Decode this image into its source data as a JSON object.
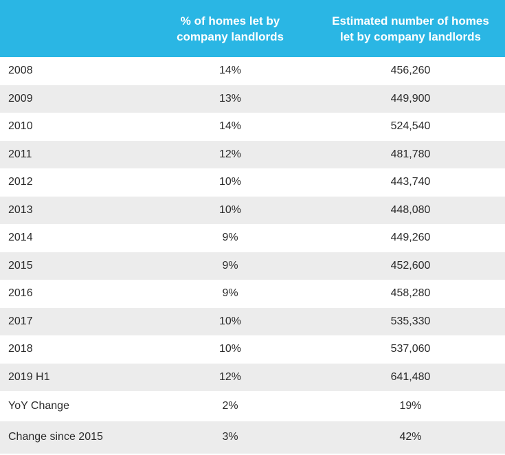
{
  "table": {
    "headers": {
      "year": "",
      "percent": "% of homes let by\ncompany landlords",
      "estimated": "Estimated number of homes\nlet by company landlords"
    },
    "rows": [
      {
        "label": "2008",
        "percent": "14%",
        "estimated": "456,260"
      },
      {
        "label": "2009",
        "percent": "13%",
        "estimated": "449,900"
      },
      {
        "label": "2010",
        "percent": "14%",
        "estimated": "524,540"
      },
      {
        "label": "2011",
        "percent": "12%",
        "estimated": "481,780"
      },
      {
        "label": "2012",
        "percent": "10%",
        "estimated": "443,740"
      },
      {
        "label": "2013",
        "percent": "10%",
        "estimated": "448,080"
      },
      {
        "label": "2014",
        "percent": "9%",
        "estimated": "449,260"
      },
      {
        "label": "2015",
        "percent": "9%",
        "estimated": "452,600"
      },
      {
        "label": "2016",
        "percent": "9%",
        "estimated": "458,280"
      },
      {
        "label": "2017",
        "percent": "10%",
        "estimated": "535,330"
      },
      {
        "label": "2018",
        "percent": "10%",
        "estimated": "537,060"
      },
      {
        "label": "2019 H1",
        "percent": "12%",
        "estimated": "641,480"
      },
      {
        "label": "YoY Change",
        "percent": "2%",
        "estimated": "19%"
      },
      {
        "label": "Change since 2015",
        "percent": "3%",
        "estimated": "42%"
      }
    ]
  },
  "colors": {
    "header_bg": "#2ab6e4",
    "stripe": "#ececec"
  }
}
